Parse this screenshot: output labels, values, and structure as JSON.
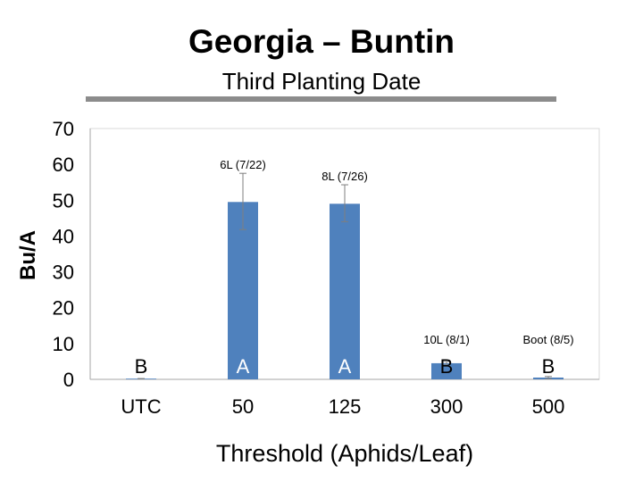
{
  "title": "Georgia – Buntin",
  "subtitle": "Third Planting Date",
  "chart_data": {
    "type": "bar",
    "title": "Georgia – Buntin",
    "subtitle": "Third Planting Date",
    "xlabel": "Threshold (Aphids/Leaf)",
    "ylabel": "Bu/A",
    "ylim": [
      0,
      70
    ],
    "yticks": [
      0,
      10,
      20,
      30,
      40,
      50,
      60,
      70
    ],
    "grid": false,
    "categories": [
      "UTC",
      "50",
      "125",
      "300",
      "500"
    ],
    "values": [
      0.2,
      49.5,
      49.0,
      4.5,
      0.5
    ],
    "error_low": [
      0.2,
      41.8,
      44.0,
      4.0,
      0.2
    ],
    "error_high": [
      0.2,
      57.5,
      54.3,
      5.0,
      0.8
    ],
    "letters": [
      "B",
      "A",
      "A",
      "B",
      "B"
    ],
    "annotations": [
      "",
      "6L (7/22)",
      "8L (7/26)",
      "10L (8/1)",
      "Boot (8/5)"
    ],
    "bar_color": "#4f81bd"
  }
}
